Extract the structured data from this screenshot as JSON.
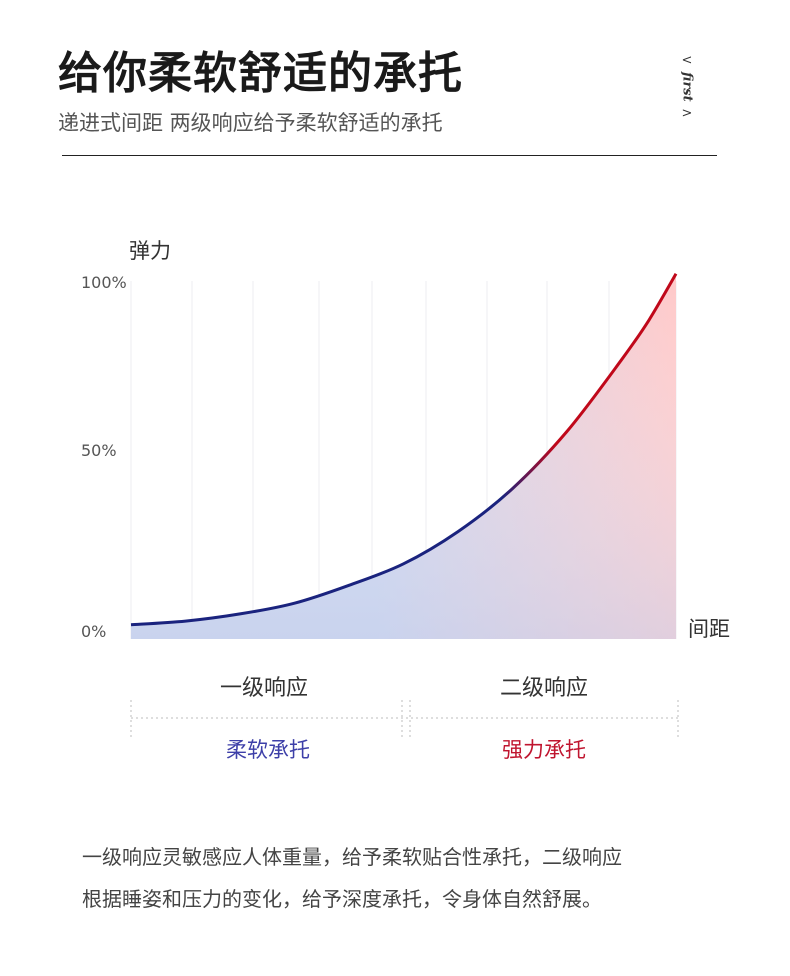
{
  "header": {
    "title": "给你柔软舒适的承托",
    "subtitle": "递进式间距 两级响应给予柔软舒适的承托",
    "tag_open": "<",
    "tag_word": "first",
    "tag_close": ">"
  },
  "chart_data": {
    "type": "area",
    "ylabel": "弹力",
    "xlabel": "间距",
    "y_ticks": [
      "100%",
      "50%",
      "0%"
    ],
    "ylim": [
      0,
      100
    ],
    "xlim": [
      0,
      100
    ],
    "grid": "vertical",
    "series": [
      {
        "x": [
          0,
          10,
          20,
          30,
          40,
          50,
          60,
          70,
          80,
          90,
          95,
          100
        ],
        "y": [
          4,
          5,
          7,
          10,
          15,
          21,
          30,
          42,
          58,
          78,
          89,
          102
        ]
      }
    ],
    "colors": {
      "line_start": "#1a237e",
      "line_end": "#c0081a",
      "fill_start": "#c9d3ee",
      "fill_end": "#ffc9c9"
    }
  },
  "levels": {
    "first": "一级响应",
    "second": "二级响应",
    "first_support": "柔软承托",
    "second_support": "强力承托",
    "first_color": "#3d3fa8",
    "second_color": "#c0152f"
  },
  "description": {
    "line1": "一级响应灵敏感应人体重量，给予柔软贴合性承托，二级响应",
    "line2": "根据睡姿和压力的变化，给予深度承托，令身体自然舒展。"
  }
}
